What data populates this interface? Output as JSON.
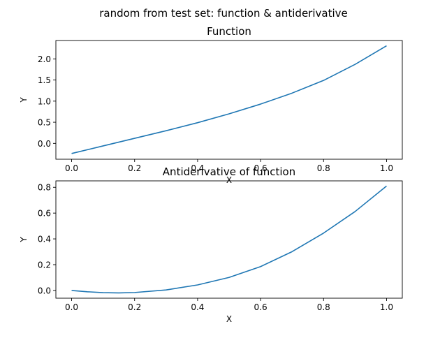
{
  "figure": {
    "suptitle": "random from test set: function & antiderivative"
  },
  "chart_data": [
    {
      "type": "line",
      "title": "Function",
      "xlabel": "X",
      "ylabel": "Y",
      "xlim": [
        -0.05,
        1.05
      ],
      "ylim": [
        -0.375,
        2.435
      ],
      "xticks": [
        0.0,
        0.2,
        0.4,
        0.6,
        0.8,
        1.0
      ],
      "xtick_labels": [
        "0.0",
        "0.2",
        "0.4",
        "0.6",
        "0.8",
        "1.0"
      ],
      "yticks": [
        0.0,
        0.5,
        1.0,
        1.5,
        2.0
      ],
      "ytick_labels": [
        "0.0",
        "0.5",
        "1.0",
        "1.5",
        "2.0"
      ],
      "grid": false,
      "series": [
        {
          "color": "#1f77b4",
          "x": [
            0.0,
            0.1,
            0.2,
            0.3,
            0.4,
            0.5,
            0.6,
            0.7,
            0.8,
            0.9,
            1.0
          ],
          "y": [
            -0.24,
            -0.06,
            0.12,
            0.3,
            0.49,
            0.7,
            0.93,
            1.19,
            1.49,
            1.87,
            2.31
          ]
        }
      ]
    },
    {
      "type": "line",
      "title": "Antiderivative of function",
      "xlabel": "X",
      "ylabel": "Y",
      "xlim": [
        -0.05,
        1.05
      ],
      "ylim": [
        -0.06,
        0.85
      ],
      "xticks": [
        0.0,
        0.2,
        0.4,
        0.6,
        0.8,
        1.0
      ],
      "xtick_labels": [
        "0.0",
        "0.2",
        "0.4",
        "0.6",
        "0.8",
        "1.0"
      ],
      "yticks": [
        0.0,
        0.2,
        0.4,
        0.6,
        0.8
      ],
      "ytick_labels": [
        "0.0",
        "0.2",
        "0.4",
        "0.6",
        "0.8"
      ],
      "grid": false,
      "series": [
        {
          "color": "#1f77b4",
          "x": [
            0.0,
            0.05,
            0.1,
            0.15,
            0.2,
            0.3,
            0.4,
            0.5,
            0.6,
            0.7,
            0.8,
            0.9,
            1.0
          ],
          "y": [
            0.0,
            -0.01,
            -0.017,
            -0.019,
            -0.016,
            0.004,
            0.043,
            0.101,
            0.185,
            0.301,
            0.445,
            0.612,
            0.81
          ]
        }
      ]
    }
  ]
}
